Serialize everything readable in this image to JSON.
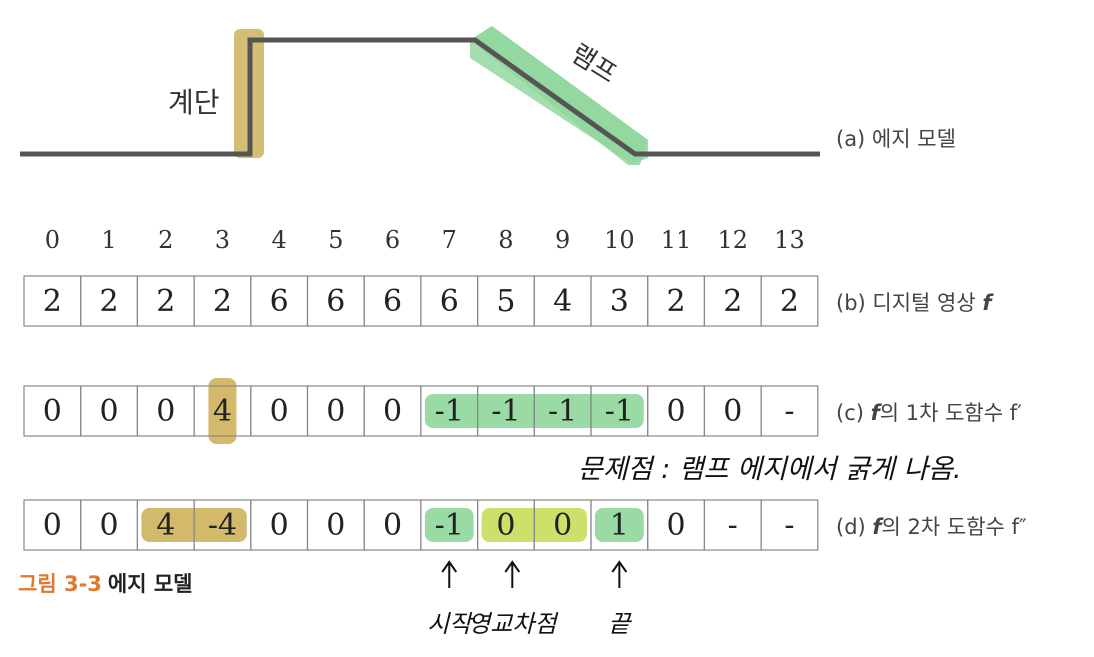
{
  "edge_model": {
    "step_label": "계단",
    "ramp_label": "램프",
    "caption": "(a) 에지 모델"
  },
  "indices": [
    "0",
    "1",
    "2",
    "3",
    "4",
    "5",
    "6",
    "7",
    "8",
    "9",
    "10",
    "11",
    "12",
    "13"
  ],
  "rows": [
    {
      "key": "f",
      "values": [
        "2",
        "2",
        "2",
        "2",
        "6",
        "6",
        "6",
        "6",
        "5",
        "4",
        "3",
        "2",
        "2",
        "2"
      ],
      "label_prefix": "(b) 디지털 영상 ",
      "label_symbol": "f",
      "label_suffix": "",
      "highlights": []
    },
    {
      "key": "f1",
      "values": [
        "0",
        "0",
        "0",
        "4",
        "0",
        "0",
        "0",
        "-1",
        "-1",
        "-1",
        "-1",
        "0",
        "0",
        "-"
      ],
      "label_prefix": "(c) ",
      "label_symbol": "f",
      "label_suffix": "의 1차 도함수 f′",
      "highlights": [
        {
          "cells": [
            3,
            3
          ],
          "color": "#cdb35a",
          "style": "narrow"
        },
        {
          "cells": [
            7,
            10
          ],
          "color": "#8fd69a",
          "style": "band"
        }
      ]
    },
    {
      "key": "f2",
      "values": [
        "0",
        "0",
        "4",
        "-4",
        "0",
        "0",
        "0",
        "-1",
        "0",
        "0",
        "1",
        "0",
        "-",
        "-"
      ],
      "label_prefix": "(d) ",
      "label_symbol": "f",
      "label_suffix": "의 2차 도함수 f″",
      "highlights": [
        {
          "cells": [
            2,
            3
          ],
          "color": "#cdb35a",
          "style": "band"
        },
        {
          "cells": [
            7,
            7
          ],
          "color": "#8fd69a",
          "style": "band"
        },
        {
          "cells": [
            8,
            9
          ],
          "color": "#c9dc5a",
          "style": "band"
        },
        {
          "cells": [
            10,
            10
          ],
          "color": "#8fd69a",
          "style": "band"
        }
      ]
    }
  ],
  "annotation_problem": "문제점 : 램프 에지에서 굵게 나옴.",
  "arrows": [
    {
      "cell": 7,
      "label": "시작"
    },
    {
      "cell": 9,
      "label": "영교차점"
    },
    {
      "cell": 10,
      "label": "끝"
    }
  ],
  "figure_caption": {
    "number": "그림 3-3",
    "title": "에지 모델"
  },
  "colors": {
    "step_highlight": "#cdb35a",
    "ramp_highlight": "#8fd69a",
    "zero_cross_highlight": "#c9dc5a",
    "line": "#555555",
    "caption_accent": "#e0782e"
  }
}
